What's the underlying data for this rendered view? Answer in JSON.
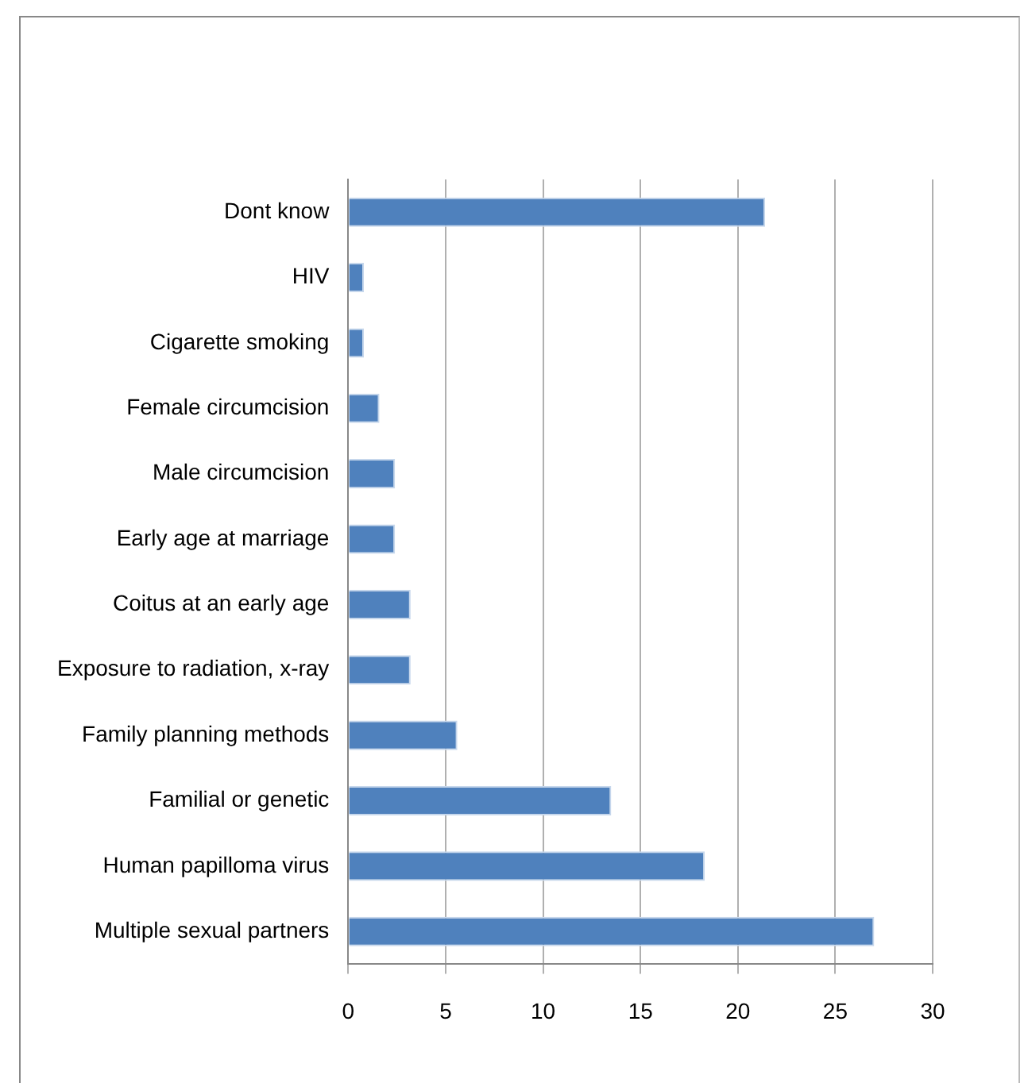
{
  "chart_data": {
    "type": "bar",
    "orientation": "horizontal",
    "categories": [
      "Dont know",
      "HIV",
      "Cigarette smoking",
      "Female circumcision",
      "Male circumcision",
      "Early age at marriage",
      "Coitus at an early age",
      "Exposure to radiation, x-ray",
      "Family planning methods",
      "Familial or genetic",
      "Human papilloma virus",
      "Multiple sexual partners"
    ],
    "values": [
      21.4,
      0.8,
      0.8,
      1.6,
      2.4,
      2.4,
      3.2,
      3.2,
      5.6,
      13.5,
      18.3,
      27.0
    ],
    "color": "#4f81bd",
    "xlim": [
      0,
      30
    ],
    "xticks": [
      0,
      5,
      10,
      15,
      20,
      25,
      30
    ],
    "grid": "x",
    "legend": false
  }
}
